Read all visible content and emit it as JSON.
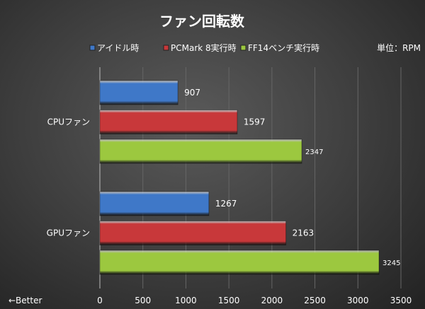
{
  "chart_data": {
    "type": "bar",
    "orientation": "horizontal",
    "title": "ファン回転数",
    "unit_label": "単位：RPM",
    "note": "←Better",
    "categories": [
      "CPUファン",
      "GPUファン"
    ],
    "series": [
      {
        "name": "アイドル時",
        "color": "#3f78c8",
        "values": [
          907,
          1267
        ]
      },
      {
        "name": "PCMark 8実行時",
        "color": "#c8383a",
        "values": [
          1597,
          2163
        ]
      },
      {
        "name": "FF14ベンチ実行時",
        "color": "#9cc83f",
        "values": [
          2347,
          3245
        ]
      }
    ],
    "xlim": [
      0,
      3500
    ],
    "xticks": [
      "0",
      "500",
      "1000",
      "1500",
      "2000",
      "2500",
      "3000",
      "3500"
    ],
    "grid": true,
    "legend": "top"
  }
}
